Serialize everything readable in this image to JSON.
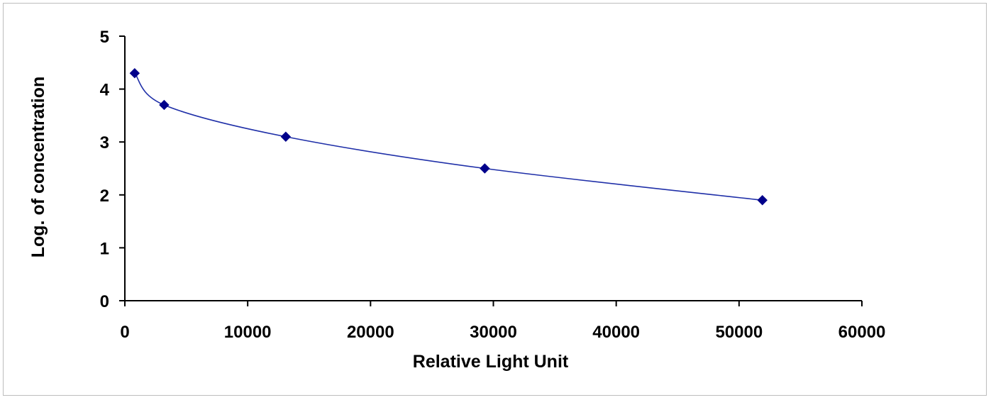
{
  "chart_data": {
    "type": "scatter",
    "xlabel": "Relative Light Unit",
    "ylabel": "Log. of concentration",
    "xlim": [
      0,
      60000
    ],
    "ylim": [
      0,
      5
    ],
    "x_ticks": [
      0,
      10000,
      20000,
      30000,
      40000,
      50000,
      60000
    ],
    "y_ticks": [
      0,
      1,
      2,
      3,
      4,
      5
    ],
    "grid": false,
    "legend": "none",
    "series": [
      {
        "points": [
          {
            "x": 800,
            "y": 4.3
          },
          {
            "x": 3200,
            "y": 3.7
          },
          {
            "x": 13100,
            "y": 3.1
          },
          {
            "x": 29300,
            "y": 2.5
          },
          {
            "x": 51900,
            "y": 1.9
          }
        ],
        "marker": "diamond",
        "fit_line": "smooth-curve",
        "color": "#00008b",
        "line_color": "#1f2fa8"
      }
    ]
  }
}
